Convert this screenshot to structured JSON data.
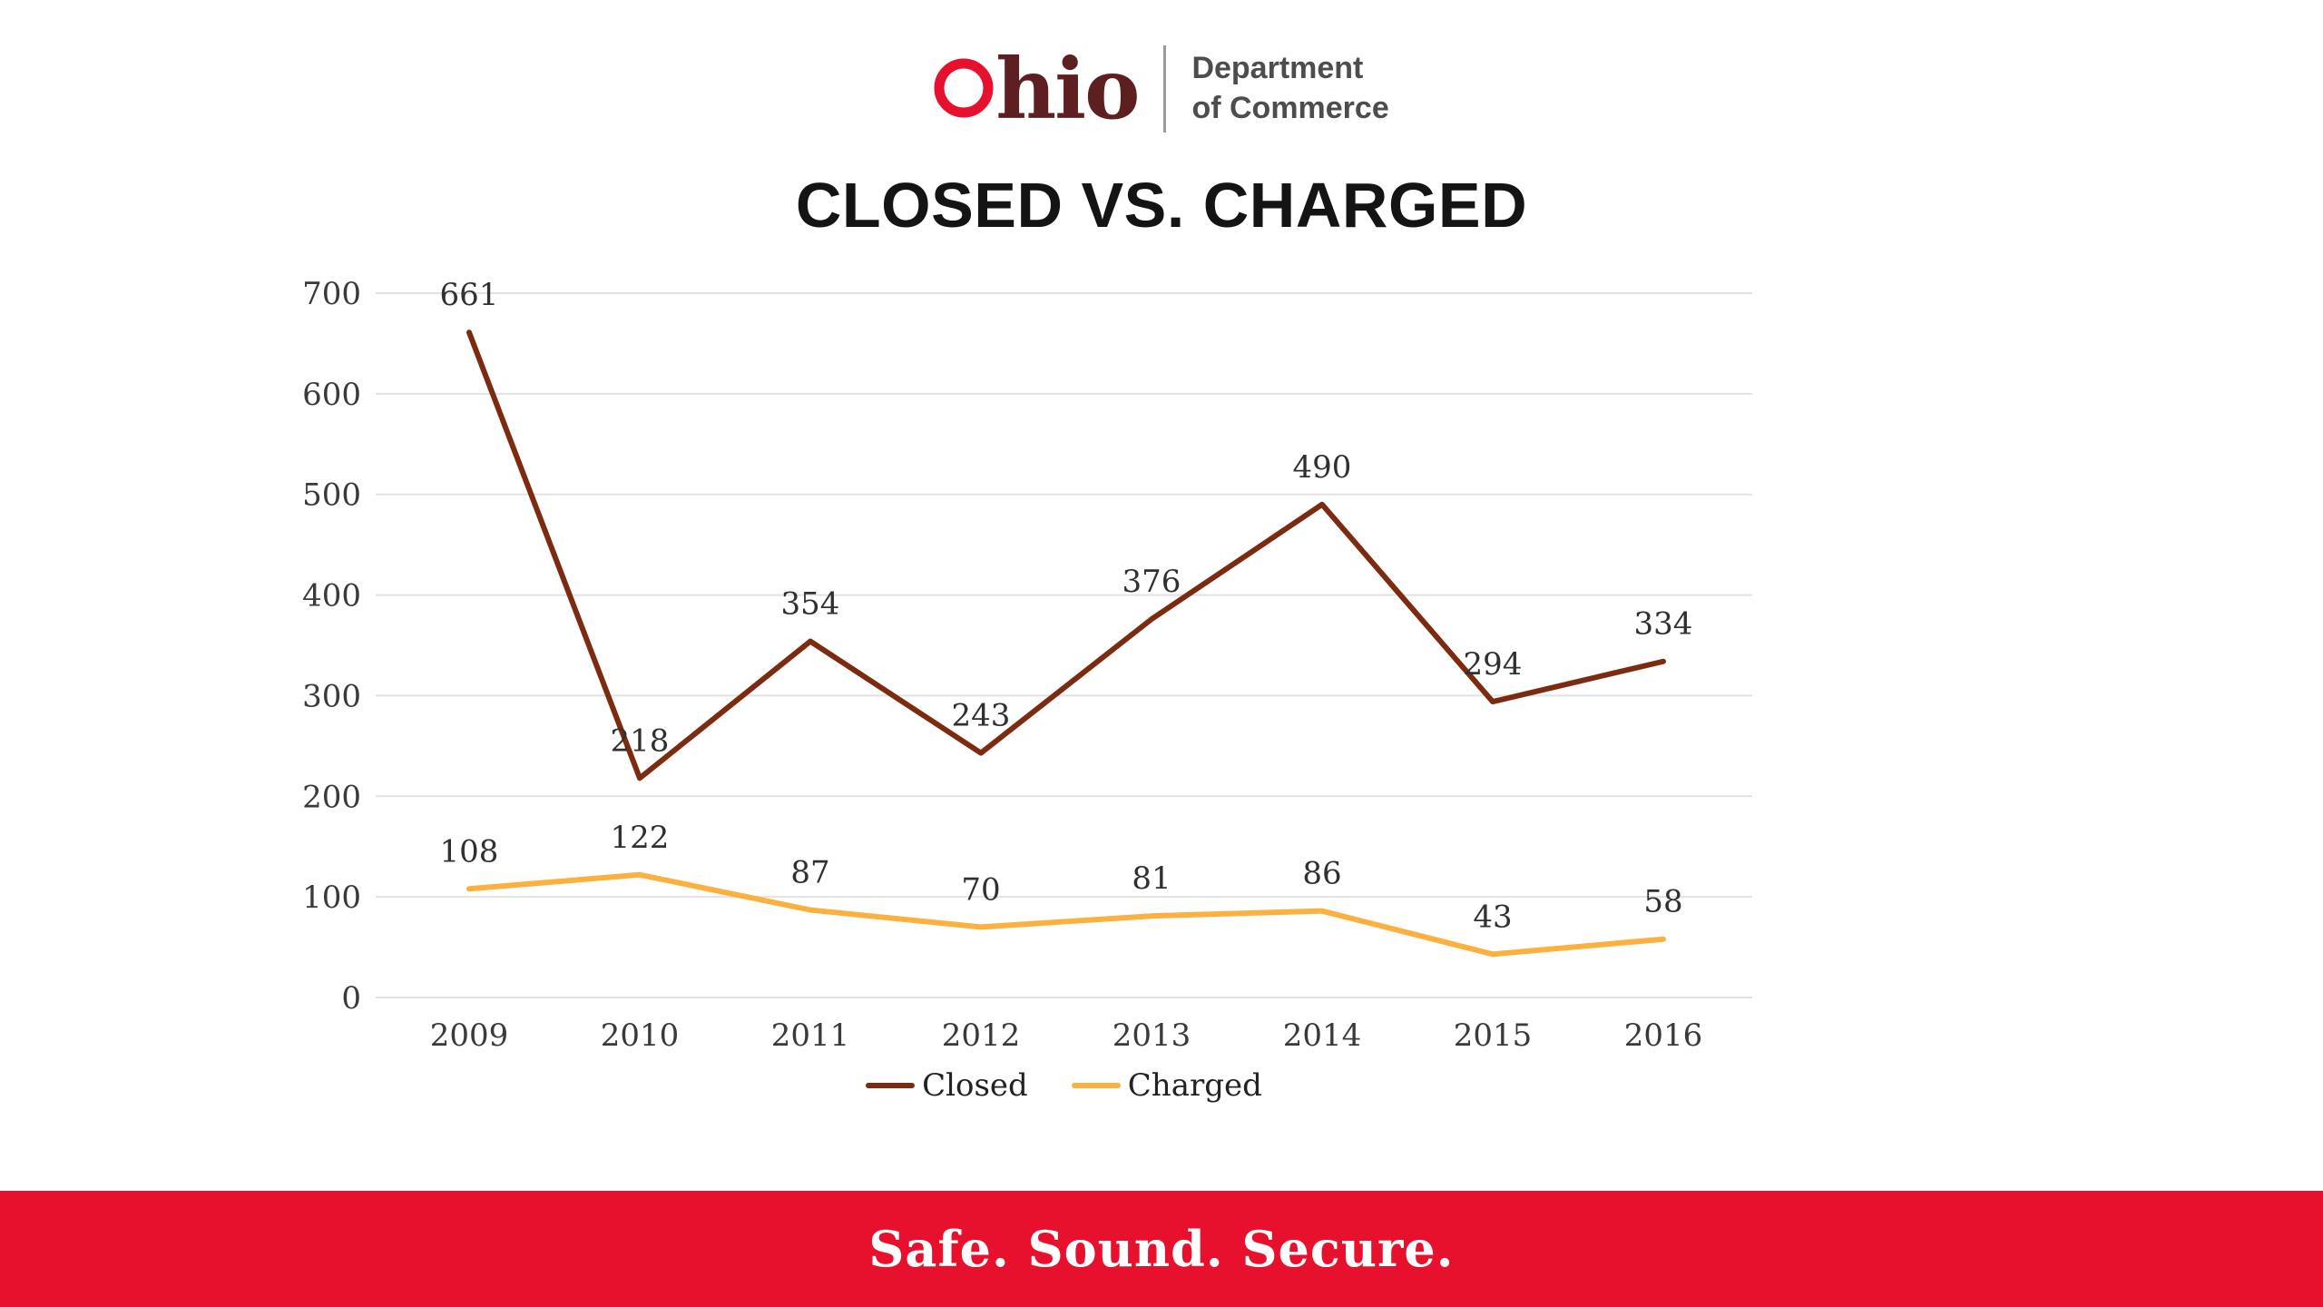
{
  "header": {
    "logo": {
      "wordmark": "Ohio",
      "o": "O",
      "hio": "hio",
      "dept_line1": "Department",
      "dept_line2": "of Commerce"
    },
    "colors": {
      "ohio_o": "#e8112d",
      "ohio_hio": "#5e1f20",
      "dept_text": "#4d4d4d"
    }
  },
  "chart_data": {
    "type": "line",
    "title": "CLOSED VS. CHARGED",
    "categories": [
      "2009",
      "2010",
      "2011",
      "2012",
      "2013",
      "2014",
      "2015",
      "2016"
    ],
    "series": [
      {
        "name": "Closed",
        "color": "#7d2b10",
        "values": [
          661,
          218,
          354,
          243,
          376,
          490,
          294,
          334
        ]
      },
      {
        "name": "Charged",
        "color": "#fbb040",
        "values": [
          108,
          122,
          87,
          70,
          81,
          86,
          43,
          58
        ]
      }
    ],
    "xlabel": "",
    "ylabel": "",
    "ylim": [
      0,
      700
    ],
    "ytick_step": 100,
    "grid": true,
    "legend_position": "bottom"
  },
  "footer": {
    "tagline": "Safe. Sound. Secure.",
    "background": "#e8112d",
    "text_color": "#ffffff"
  }
}
